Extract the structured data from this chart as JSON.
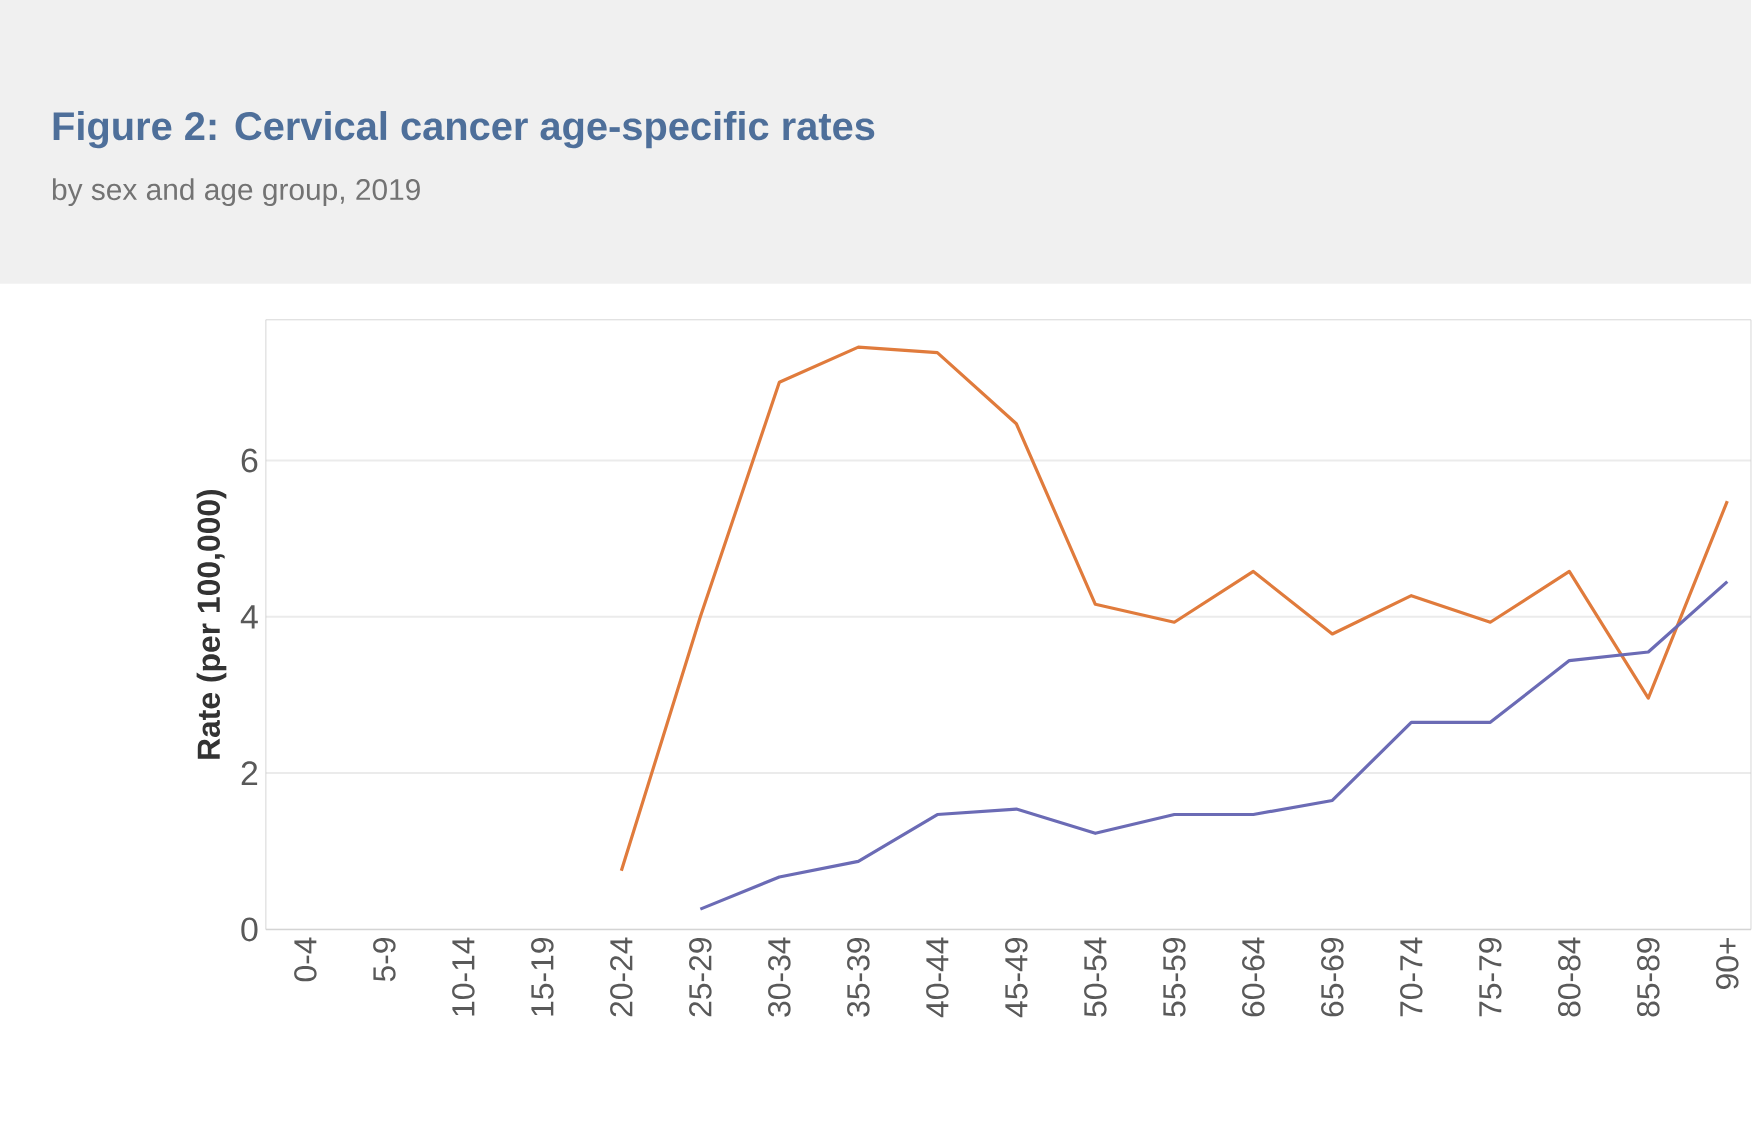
{
  "chart_data": {
    "type": "line",
    "title": "Figure 2: Cervical cancer age-specific rates",
    "subtitle": "by sex and age group, 2019",
    "ylabel": "Rate (per 100,000)",
    "categories": [
      "0-4",
      "5-9",
      "10-14",
      "15-19",
      "20-24",
      "25-29",
      "30-34",
      "35-39",
      "40-44",
      "45-49",
      "50-54",
      "55-59",
      "60-64",
      "65-69",
      "70-74",
      "75-79",
      "80-84",
      "85-89",
      "90+"
    ],
    "series": [
      {
        "color": "#e07b3c",
        "values": [
          null,
          null,
          null,
          null,
          0.75,
          4.0,
          7.0,
          7.45,
          7.38,
          6.47,
          4.16,
          3.93,
          4.58,
          3.78,
          4.27,
          3.93,
          4.58,
          2.96,
          5.48
        ]
      },
      {
        "color": "#6b6bb5",
        "values": [
          null,
          null,
          null,
          null,
          null,
          0.26,
          0.67,
          0.87,
          1.47,
          1.54,
          1.23,
          1.47,
          1.47,
          1.65,
          2.65,
          2.65,
          3.44,
          3.55,
          4.45
        ]
      }
    ],
    "ylim": [
      0,
      7.8
    ],
    "yticks": [
      0,
      2,
      4,
      6
    ],
    "grid": "y"
  }
}
